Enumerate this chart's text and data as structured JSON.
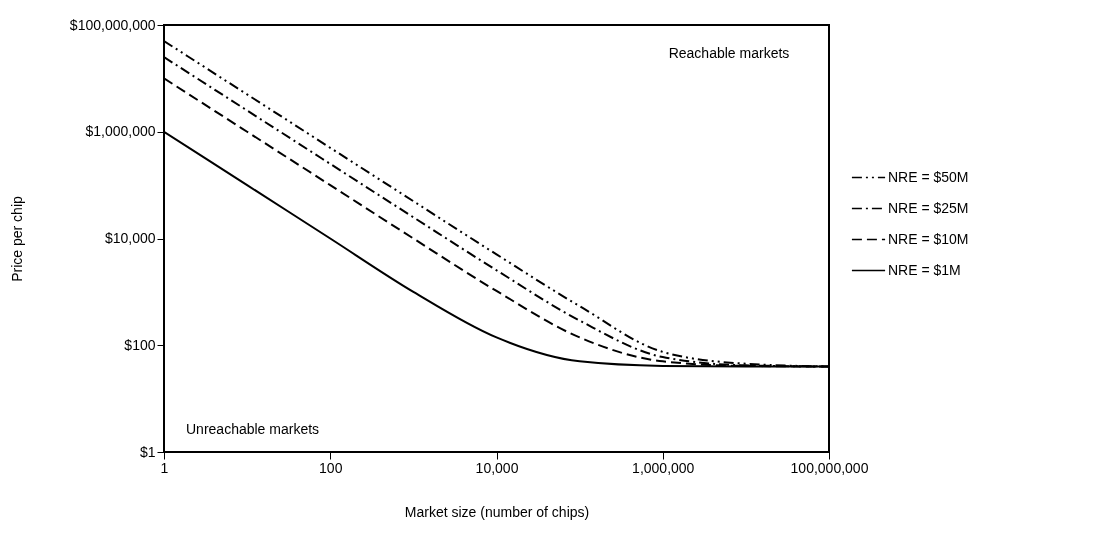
{
  "chart_data": {
    "type": "line",
    "xlabel": "Market size (number of chips)",
    "ylabel": "Price per chip",
    "x": [
      1,
      10,
      100,
      1000,
      10000,
      100000,
      1000000,
      10000000,
      100000000
    ],
    "series": [
      {
        "name": "NRE = $50M",
        "color": "#000000",
        "line_style": "dashdotdot",
        "values": [
          50000000,
          5000000,
          500000,
          50000,
          5040,
          540,
          75,
          45,
          40
        ]
      },
      {
        "name": "NRE = $25M",
        "color": "#000000",
        "line_style": "dashdot",
        "values": [
          25000000,
          2500000,
          250000,
          25000,
          2540,
          290,
          60,
          42,
          40
        ]
      },
      {
        "name": "NRE = $10M",
        "color": "#000000",
        "line_style": "dashed",
        "values": [
          10000000,
          1000000,
          100000,
          10000,
          1040,
          140,
          50,
          41,
          40
        ]
      },
      {
        "name": "NRE = $1M",
        "color": "#000000",
        "line_style": "solid",
        "values": [
          1000000,
          100000,
          10000,
          1000,
          140,
          50,
          41,
          40,
          40
        ]
      }
    ],
    "log": "xy",
    "grid": false,
    "legend": "right",
    "xlim": [
      1,
      100000000
    ],
    "xticks": [
      1,
      100,
      {
        "value": 10000,
        "label": "10,000"
      },
      {
        "value": 1000000,
        "label": "1,000,000"
      },
      {
        "value": 100000000,
        "label": "100,000,000"
      }
    ],
    "ylim": [
      1,
      100000000
    ],
    "yticks": [
      {
        "value": 1,
        "label": "$1"
      },
      {
        "value": 100,
        "label": "$100"
      },
      {
        "value": 10000,
        "label": "$10,000"
      },
      {
        "value": 1000000,
        "label": "$1,000,000"
      },
      {
        "value": 100000000,
        "label": "$100,000,000"
      }
    ],
    "annotations": [
      "Reachable markets",
      "Unreachable markets"
    ]
  }
}
